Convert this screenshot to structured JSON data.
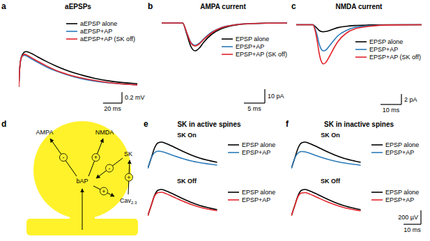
{
  "chart_data": [
    {
      "label": "a",
      "type": "line",
      "title": "aEPSPs",
      "tick_labels": false,
      "x": [
        0,
        1,
        2,
        4,
        6,
        8,
        10,
        15,
        20,
        30,
        40,
        50,
        60,
        80,
        100,
        125
      ],
      "xlim": [
        0,
        125
      ],
      "ylim": [
        0,
        0.7
      ],
      "series": [
        {
          "name": "aEPSP alone",
          "color": "#000000",
          "values": [
            0,
            0.35,
            0.5,
            0.6,
            0.64,
            0.65,
            0.64,
            0.6,
            0.55,
            0.46,
            0.38,
            0.31,
            0.25,
            0.16,
            0.1,
            0.06
          ]
        },
        {
          "name": "aEPSP+AP",
          "color": "#2b7bba",
          "values": [
            0,
            0.35,
            0.5,
            0.57,
            0.58,
            0.57,
            0.55,
            0.5,
            0.45,
            0.36,
            0.29,
            0.23,
            0.18,
            0.11,
            0.07,
            0.04
          ]
        },
        {
          "name": "aEPSP+AP (SK off)",
          "color": "#e3242b",
          "values": [
            0,
            0.35,
            0.5,
            0.58,
            0.6,
            0.59,
            0.57,
            0.52,
            0.47,
            0.38,
            0.3,
            0.24,
            0.19,
            0.12,
            0.07,
            0.04
          ]
        }
      ],
      "scale_bar": {
        "x": 20,
        "x_label": "20 ms",
        "y": 0.2,
        "y_label": "0.2 mV"
      }
    },
    {
      "label": "b",
      "type": "line",
      "title": "AMPA current",
      "tick_labels": false,
      "x": [
        0,
        5,
        6,
        7,
        8,
        9,
        10,
        12,
        14,
        16,
        18,
        20,
        25,
        30
      ],
      "xlim": [
        0,
        30
      ],
      "ylim": [
        -22,
        2
      ],
      "series": [
        {
          "name": "EPSP alone",
          "color": "#000000",
          "values": [
            0,
            0,
            -8,
            -17,
            -20,
            -18,
            -14,
            -8,
            -4.5,
            -2.5,
            -1.3,
            -0.7,
            -0.1,
            0
          ]
        },
        {
          "name": "EPSP+AP",
          "color": "#2b7bba",
          "values": [
            0,
            0,
            -7,
            -14,
            -16,
            -14.5,
            -11.5,
            -6.5,
            -3.6,
            -2,
            -1,
            -0.5,
            -0.1,
            0
          ]
        },
        {
          "name": "EPSP+AP (SK off)",
          "color": "#e3242b",
          "values": [
            0,
            0,
            -7,
            -14.5,
            -16.5,
            -15,
            -12,
            -7,
            -3.8,
            -2.1,
            -1.1,
            -0.6,
            -0.1,
            0
          ]
        }
      ],
      "scale_bar": {
        "x": 5,
        "x_label": "5 ms",
        "y": 10,
        "y_label": "10 pA"
      }
    },
    {
      "label": "c",
      "type": "line",
      "title": "NMDA current",
      "tick_labels": false,
      "x": [
        0,
        8,
        9,
        10,
        11,
        12,
        13,
        14,
        16,
        18,
        20,
        24,
        28,
        35,
        45,
        60
      ],
      "xlim": [
        0,
        60
      ],
      "ylim": [
        -8,
        1
      ],
      "series": [
        {
          "name": "EPSP alone",
          "color": "#000000",
          "values": [
            0,
            0,
            -0.3,
            -0.7,
            -1.1,
            -1.3,
            -1.35,
            -1.3,
            -1.1,
            -0.8,
            -0.55,
            -0.3,
            -0.15,
            -0.05,
            0,
            0
          ]
        },
        {
          "name": "EPSP+AP",
          "color": "#2b7bba",
          "values": [
            0,
            0,
            -0.7,
            -2,
            -3.7,
            -4.7,
            -5,
            -4.9,
            -4,
            -3,
            -2.1,
            -1.1,
            -0.5,
            -0.2,
            -0.03,
            0
          ]
        },
        {
          "name": "EPSP+AP (SK off)",
          "color": "#e3242b",
          "values": [
            0,
            0,
            -1,
            -3,
            -5.5,
            -7,
            -7.5,
            -7.3,
            -6,
            -4.5,
            -3.2,
            -1.6,
            -0.8,
            -0.3,
            -0.05,
            0
          ]
        }
      ],
      "scale_bar": {
        "x": 10,
        "x_label": "10 ms",
        "y": 2,
        "y_label": "2 pA"
      }
    },
    {
      "label": "e",
      "type": "line",
      "title": "SK in active spines",
      "subtitle": "SK On",
      "tick_labels": false,
      "x": [
        0,
        2,
        4,
        6,
        8,
        10,
        15,
        20,
        25,
        30,
        40
      ],
      "xlim": [
        0,
        45
      ],
      "ylim": [
        0,
        400
      ],
      "series": [
        {
          "name": "EPSP alone",
          "color": "#000000",
          "values": [
            0,
            150,
            300,
            370,
            380,
            365,
            310,
            250,
            195,
            150,
            90
          ]
        },
        {
          "name": "EPSP+AP",
          "color": "#2b7bba",
          "values": [
            0,
            150,
            230,
            250,
            245,
            230,
            185,
            145,
            110,
            85,
            50
          ]
        }
      ]
    },
    {
      "type": "line",
      "subtitle": "SK Off",
      "tick_labels": false,
      "x": [
        0,
        2,
        4,
        6,
        8,
        10,
        15,
        20,
        25,
        30,
        40
      ],
      "xlim": [
        0,
        45
      ],
      "ylim": [
        0,
        400
      ],
      "series": [
        {
          "name": "EPSP alone",
          "color": "#000000",
          "values": [
            0,
            150,
            300,
            370,
            380,
            365,
            310,
            250,
            195,
            150,
            90
          ]
        },
        {
          "name": "EPSP+AP",
          "color": "#e3242b",
          "values": [
            0,
            150,
            290,
            335,
            340,
            325,
            270,
            215,
            165,
            125,
            75
          ]
        }
      ]
    },
    {
      "label": "f",
      "type": "line",
      "title": "SK in inactive spines",
      "subtitle": "SK On",
      "tick_labels": false,
      "x": [
        0,
        2,
        4,
        6,
        8,
        10,
        15,
        20,
        25,
        30,
        40
      ],
      "xlim": [
        0,
        45
      ],
      "ylim": [
        0,
        400
      ],
      "series": [
        {
          "name": "EPSP alone",
          "color": "#000000",
          "values": [
            0,
            150,
            300,
            370,
            380,
            365,
            310,
            250,
            195,
            150,
            90
          ]
        },
        {
          "name": "EPSP+AP",
          "color": "#2b7bba",
          "values": [
            0,
            150,
            225,
            245,
            240,
            225,
            180,
            140,
            107,
            82,
            48
          ]
        }
      ]
    },
    {
      "type": "line",
      "subtitle": "SK Off",
      "tick_labels": false,
      "x": [
        0,
        2,
        4,
        6,
        8,
        10,
        15,
        20,
        25,
        30,
        40
      ],
      "xlim": [
        0,
        45
      ],
      "ylim": [
        0,
        400
      ],
      "series": [
        {
          "name": "EPSP alone",
          "color": "#000000",
          "values": [
            0,
            150,
            300,
            370,
            380,
            365,
            310,
            250,
            195,
            150,
            90
          ]
        },
        {
          "name": "EPSP+AP",
          "color": "#e3242b",
          "values": [
            0,
            150,
            285,
            330,
            335,
            320,
            265,
            210,
            162,
            122,
            72
          ]
        }
      ],
      "scale_bar": {
        "x": 10,
        "x_label": "10 ms",
        "y": 200,
        "y_label": "200 µV"
      }
    }
  ],
  "diagram": {
    "label": "d",
    "nodes": [
      "AMPA",
      "NMDA",
      "SK",
      "bAP",
      {
        "text": "Cav",
        "subscript": "2.3"
      }
    ],
    "edges": [
      {
        "from": 3,
        "to": 0,
        "sign": "-"
      },
      {
        "from": 3,
        "to": 1,
        "sign": "+"
      },
      {
        "from": 2,
        "to": 3,
        "sign": "-"
      },
      {
        "from": 3,
        "to": 4,
        "sign": "+"
      },
      {
        "from": 4,
        "to": 2,
        "sign": "+"
      }
    ]
  }
}
